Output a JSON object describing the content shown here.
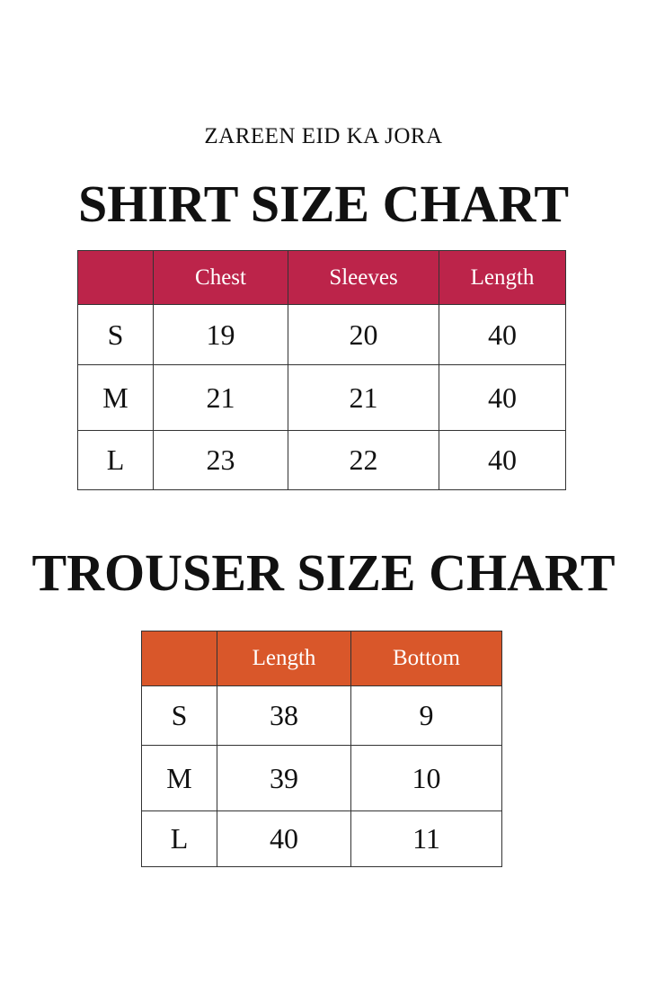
{
  "subtitle": "ZAREEN EID KA JORA",
  "shirt": {
    "title": "SHIRT SIZE CHART",
    "header_color": "#BC244A",
    "columns": [
      "",
      "Chest",
      "Sleeves",
      "Length"
    ],
    "rows": [
      [
        "S",
        "19",
        "20",
        "40"
      ],
      [
        "M",
        "21",
        "21",
        "40"
      ],
      [
        "L",
        "23",
        "22",
        "40"
      ]
    ]
  },
  "trouser": {
    "title": "TROUSER SIZE CHART",
    "header_color": "#D9572A",
    "columns": [
      "",
      "Length",
      "Bottom"
    ],
    "rows": [
      [
        "S",
        "38",
        "9"
      ],
      [
        "M",
        "39",
        "10"
      ],
      [
        "L",
        "40",
        "11"
      ]
    ]
  }
}
